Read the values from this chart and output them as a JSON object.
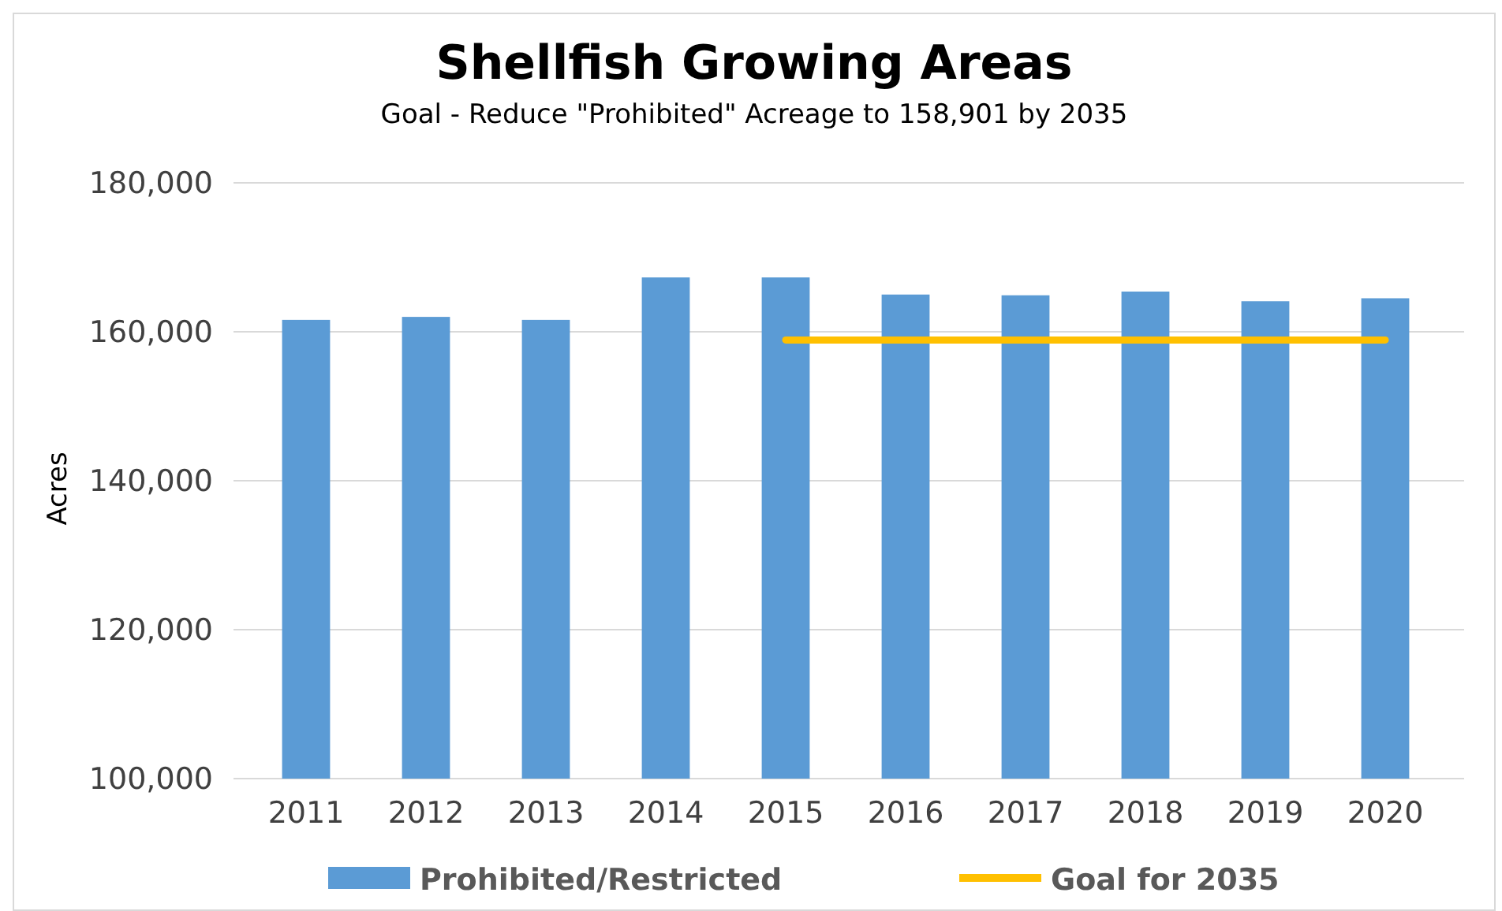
{
  "chart_data": {
    "type": "bar",
    "title": "Shellfish Growing Areas",
    "subtitle": "Goal - Reduce \"Prohibited\" Acreage to 158,901 by 2035",
    "ylabel": "Acres",
    "categories": [
      "2011",
      "2012",
      "2013",
      "2014",
      "2015",
      "2016",
      "2017",
      "2018",
      "2019",
      "2020"
    ],
    "series": [
      {
        "name": "Prohibited/Restricted",
        "color": "#5b9bd5",
        "values": [
          161600,
          162000,
          161600,
          167300,
          167300,
          165000,
          164900,
          165400,
          164100,
          164500
        ]
      },
      {
        "name": "Goal for 2035",
        "type": "line",
        "color": "#ffc000",
        "values": [
          null,
          null,
          null,
          null,
          158901,
          158901,
          158901,
          158901,
          158901,
          158901
        ]
      }
    ],
    "ylim": [
      100000,
      180000
    ],
    "yticks": [
      {
        "value": 100000,
        "label": "100,000"
      },
      {
        "value": 120000,
        "label": "120,000"
      },
      {
        "value": 140000,
        "label": "140,000"
      },
      {
        "value": 160000,
        "label": "160,000"
      },
      {
        "value": 180000,
        "label": "180,000"
      }
    ],
    "grid": "y",
    "legend": "bottom",
    "marker": "none",
    "line_style": "solid"
  }
}
